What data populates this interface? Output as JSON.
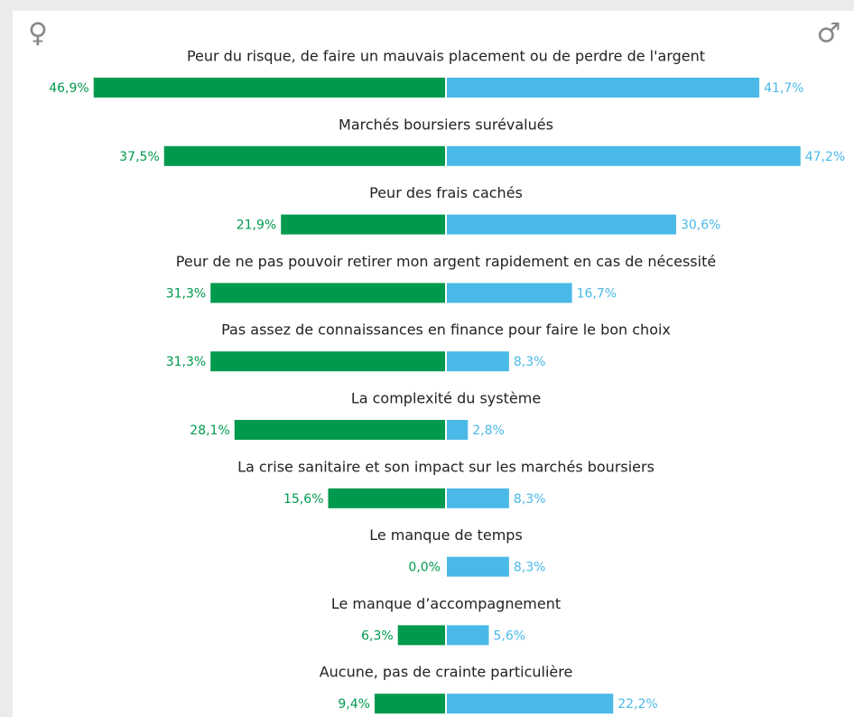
{
  "chart_data": {
    "type": "butterfly",
    "categories": [
      "Peur du risque, de faire un mauvais placement ou de perdre de l'argent",
      "Marchés boursiers surévalués",
      "Peur des frais cachés",
      "Peur de ne pas pouvoir retirer mon argent rapidement en cas de nécessité",
      "Pas assez de connaissances en finance pour faire le bon choix",
      "La complexité du système",
      "La crise sanitaire et son impact sur les marchés boursiers",
      "Le manque de temps",
      "Le manque d’accompagnement",
      "Aucune, pas de crainte particulière"
    ],
    "series": [
      {
        "name": "♀",
        "color": "#009a4e",
        "values": [
          46.9,
          37.5,
          21.9,
          31.3,
          31.3,
          28.1,
          15.6,
          0.0,
          6.3,
          9.4
        ],
        "value_labels": [
          "46,9%",
          "37,5%",
          "21,9%",
          "31,3%",
          "31,3%",
          "28,1%",
          "15,6%",
          "0,0%",
          "6,3%",
          "9,4%"
        ]
      },
      {
        "name": "♂",
        "color": "#4ab9e8",
        "values": [
          41.7,
          47.2,
          30.6,
          16.7,
          8.3,
          2.8,
          8.3,
          8.3,
          5.6,
          22.2
        ],
        "value_labels": [
          "41,7%",
          "47,2%",
          "30,6%",
          "16,7%",
          "8,3%",
          "2,8%",
          "8,3%",
          "8,3%",
          "5,6%",
          "22,2%"
        ]
      }
    ]
  }
}
